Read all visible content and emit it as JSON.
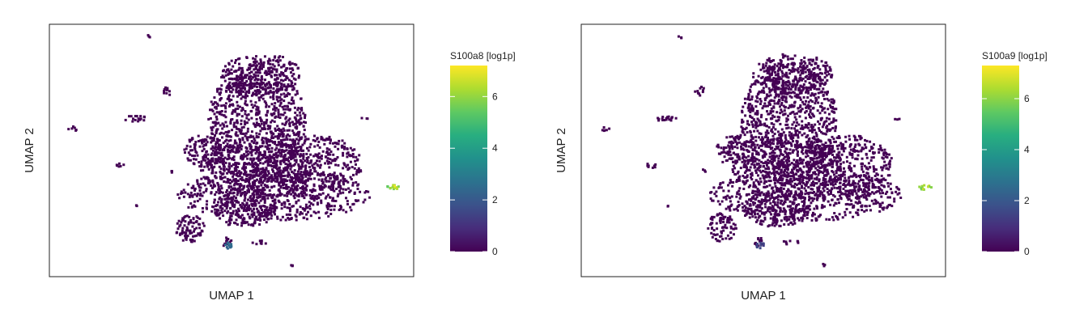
{
  "chart_data": [
    {
      "type": "scatter",
      "xlabel": "UMAP 1",
      "ylabel": "UMAP 2",
      "colorbar": {
        "title": "S100a8 [log1p]",
        "ticks": [
          0,
          2,
          4,
          6
        ],
        "range": [
          0,
          7.2
        ],
        "colormap": "viridis"
      },
      "background_color": "#440154",
      "hot_clusters": [
        {
          "name": "right-island",
          "value": 7.1
        },
        {
          "name": "bottom-island",
          "value": 2.8
        }
      ]
    },
    {
      "type": "scatter",
      "xlabel": "UMAP 1",
      "ylabel": "UMAP 2",
      "colorbar": {
        "title": "S100a9 [log1p]",
        "ticks": [
          0,
          2,
          4,
          6
        ],
        "range": [
          0,
          7.3
        ],
        "colormap": "viridis"
      },
      "background_color": "#440154",
      "hot_clusters": [
        {
          "name": "right-island",
          "value": 7.0
        },
        {
          "name": "bottom-island",
          "value": 1.6
        }
      ]
    }
  ]
}
